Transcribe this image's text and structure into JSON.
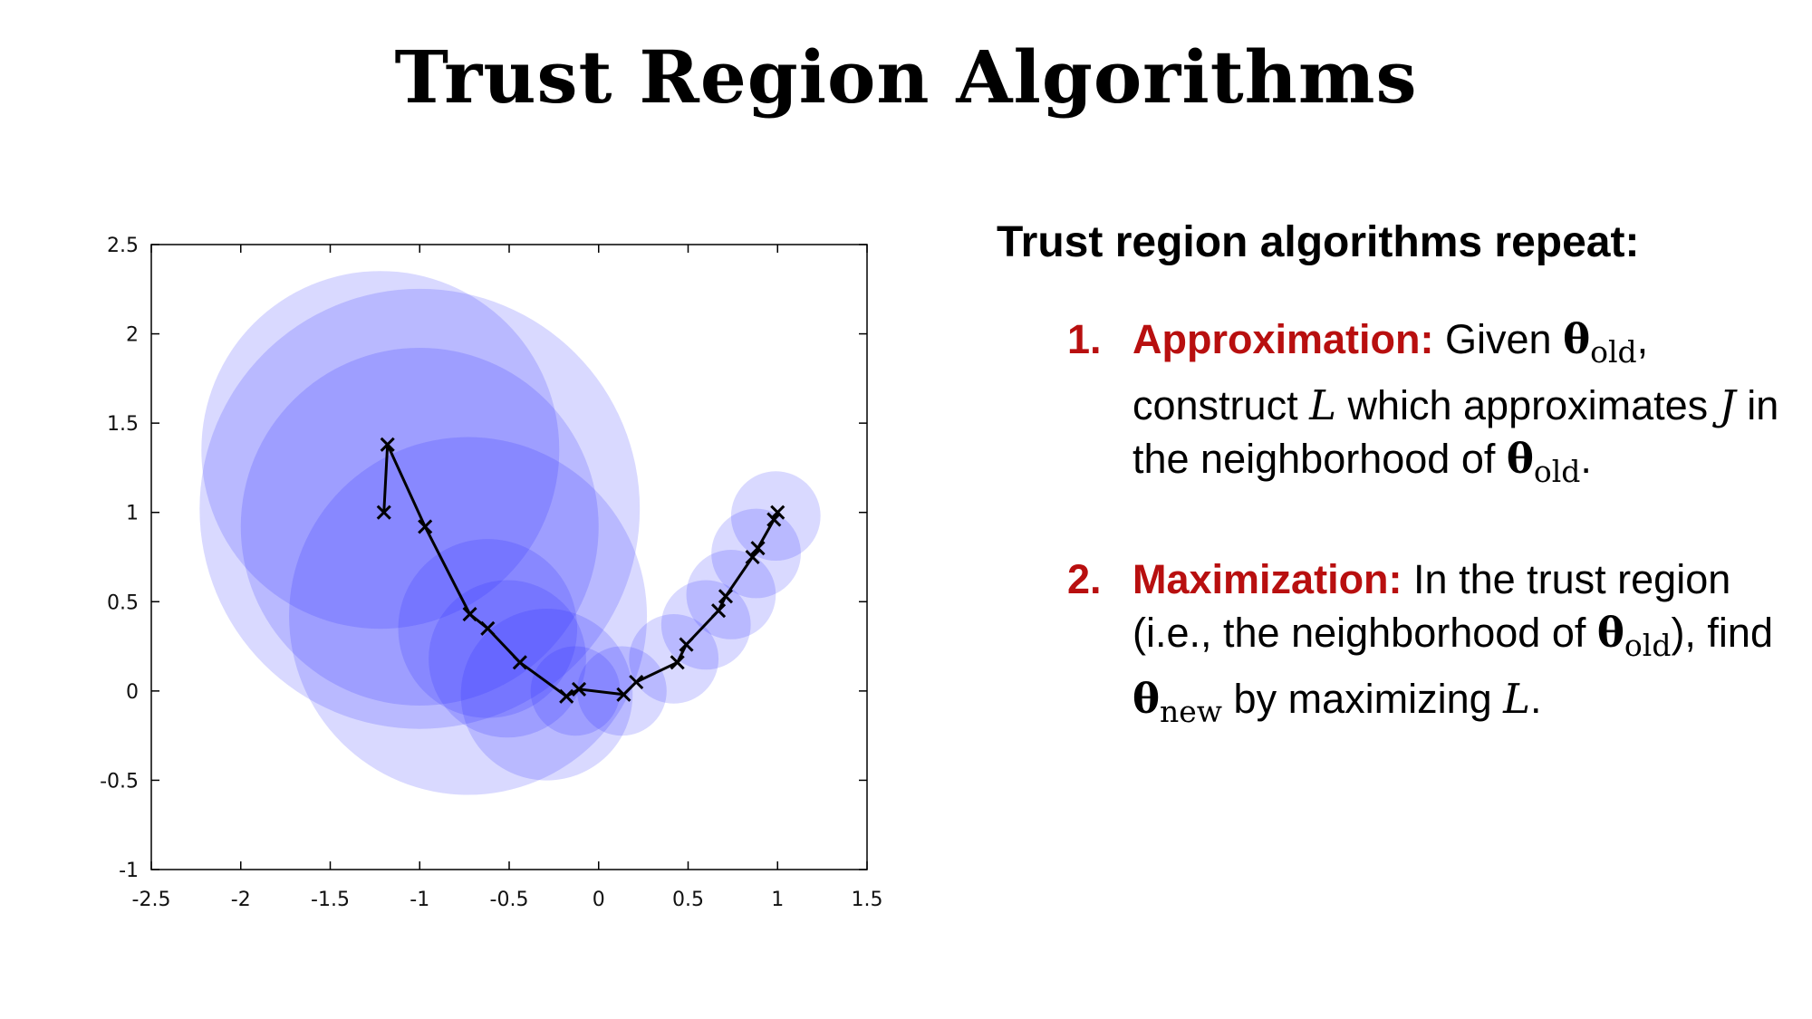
{
  "slide": {
    "title": "Trust Region Algorithms"
  },
  "content": {
    "heading": "Trust region algorithms repeat:",
    "steps": [
      {
        "number": "1.",
        "term": "Approximation:",
        "t1": " Given ",
        "theta": "θ",
        "old_sub": "old",
        "t2": ", construct ",
        "var_L": "L",
        "t3": " which approximates ",
        "var_J": "J",
        "t4": " in the neighborhood of ",
        "theta_b": "θ",
        "old_sub_b": "old",
        "t5": "."
      },
      {
        "number": "2.",
        "term": "Maximization:",
        "t1": " In the trust region (i.e., the neighborhood of ",
        "theta": "θ",
        "old_sub": "old",
        "t2": "), find ",
        "theta_new": "θ",
        "new_sub": "new",
        "t3": " by maximizing ",
        "var_L": "L",
        "t4": "."
      }
    ]
  },
  "chart_data": {
    "type": "scatter",
    "xlim": [
      -2.5,
      1.5
    ],
    "ylim": [
      -1,
      2.5
    ],
    "xticks": [
      "-2.5",
      "-2",
      "-1.5",
      "-1",
      "-0.5",
      "0",
      "0.5",
      "1",
      "1.5"
    ],
    "yticks": [
      "2.5",
      "2",
      "1.5",
      "1",
      "0.5",
      "0",
      "-0.5",
      "-1"
    ],
    "path": [
      [
        -1.2,
        1.0
      ],
      [
        -1.18,
        1.38
      ],
      [
        -0.97,
        0.92
      ],
      [
        -0.72,
        0.43
      ],
      [
        -0.62,
        0.35
      ],
      [
        -0.44,
        0.16
      ],
      [
        -0.18,
        -0.03
      ],
      [
        -0.11,
        0.01
      ],
      [
        0.14,
        -0.02
      ],
      [
        0.21,
        0.05
      ],
      [
        0.44,
        0.16
      ],
      [
        0.49,
        0.26
      ],
      [
        0.67,
        0.45
      ],
      [
        0.71,
        0.53
      ],
      [
        0.86,
        0.75
      ],
      [
        0.89,
        0.8
      ],
      [
        0.98,
        0.96
      ],
      [
        1.0,
        1.0
      ]
    ],
    "trust_regions": [
      {
        "x": -1.22,
        "y": 1.35,
        "r": 1.0
      },
      {
        "x": -1.0,
        "y": 1.02,
        "r": 1.23
      },
      {
        "x": -1.0,
        "y": 0.92,
        "r": 1.0
      },
      {
        "x": -0.73,
        "y": 0.42,
        "r": 1.0
      },
      {
        "x": -0.62,
        "y": 0.35,
        "r": 0.5
      },
      {
        "x": -0.51,
        "y": 0.18,
        "r": 0.44
      },
      {
        "x": -0.29,
        "y": -0.02,
        "r": 0.48
      },
      {
        "x": -0.13,
        "y": 0.0,
        "r": 0.25
      },
      {
        "x": 0.13,
        "y": 0.0,
        "r": 0.25
      },
      {
        "x": 0.42,
        "y": 0.18,
        "r": 0.25
      },
      {
        "x": 0.6,
        "y": 0.37,
        "r": 0.25
      },
      {
        "x": 0.74,
        "y": 0.54,
        "r": 0.25
      },
      {
        "x": 0.88,
        "y": 0.77,
        "r": 0.25
      },
      {
        "x": 0.99,
        "y": 0.98,
        "r": 0.25
      }
    ],
    "region_color": "#1f1fff",
    "line_color": "#000000"
  }
}
